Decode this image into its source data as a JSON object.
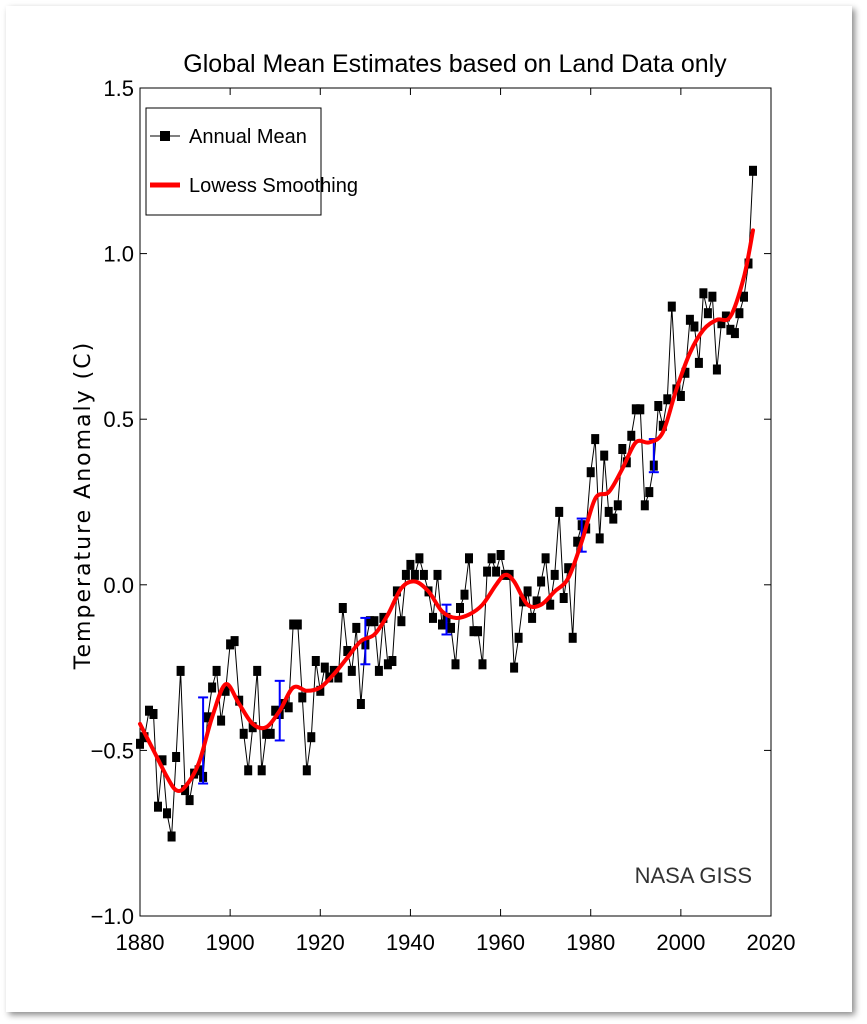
{
  "chart_data": {
    "type": "line",
    "title": "Global Mean Estimates based on Land Data only",
    "xlabel": "",
    "ylabel": "Temperature Anomaly (C)",
    "xlim": [
      1880,
      2020
    ],
    "ylim": [
      -1.0,
      1.5
    ],
    "xticks": [
      "1880",
      "1900",
      "1920",
      "1940",
      "1960",
      "1980",
      "2000",
      "2020"
    ],
    "yticks": [
      "−1.0",
      "−0.5",
      "0.0",
      "0.5",
      "1.0",
      "1.5"
    ],
    "grid": false,
    "legend_position": "top-left",
    "annotation": "NASA GISS",
    "series": [
      {
        "name": "Annual Mean",
        "color": "#000000",
        "marker": "square",
        "x": [
          1880,
          1881,
          1882,
          1883,
          1884,
          1885,
          1886,
          1887,
          1888,
          1889,
          1890,
          1891,
          1892,
          1893,
          1894,
          1895,
          1896,
          1897,
          1898,
          1899,
          1900,
          1901,
          1902,
          1903,
          1904,
          1905,
          1906,
          1907,
          1908,
          1909,
          1910,
          1911,
          1912,
          1913,
          1914,
          1915,
          1916,
          1917,
          1918,
          1919,
          1920,
          1921,
          1922,
          1923,
          1924,
          1925,
          1926,
          1927,
          1928,
          1929,
          1930,
          1931,
          1932,
          1933,
          1934,
          1935,
          1936,
          1937,
          1938,
          1939,
          1940,
          1941,
          1942,
          1943,
          1944,
          1945,
          1946,
          1947,
          1948,
          1949,
          1950,
          1951,
          1952,
          1953,
          1954,
          1955,
          1956,
          1957,
          1958,
          1959,
          1960,
          1961,
          1962,
          1963,
          1964,
          1965,
          1966,
          1967,
          1968,
          1969,
          1970,
          1971,
          1972,
          1973,
          1974,
          1975,
          1976,
          1977,
          1978,
          1979,
          1980,
          1981,
          1982,
          1983,
          1984,
          1985,
          1986,
          1987,
          1988,
          1989,
          1990,
          1991,
          1992,
          1993,
          1994,
          1995,
          1996,
          1997,
          1998,
          1999,
          2000,
          2001,
          2002,
          2003,
          2004,
          2005,
          2006,
          2007,
          2008,
          2009,
          2010,
          2011,
          2012,
          2013,
          2014,
          2015,
          2016
        ],
        "y": [
          -0.48,
          -0.46,
          -0.38,
          -0.39,
          -0.67,
          -0.53,
          -0.69,
          -0.76,
          -0.52,
          -0.26,
          -0.62,
          -0.65,
          -0.57,
          -0.56,
          -0.58,
          -0.4,
          -0.31,
          -0.26,
          -0.41,
          -0.32,
          -0.18,
          -0.17,
          -0.35,
          -0.45,
          -0.56,
          -0.43,
          -0.26,
          -0.56,
          -0.45,
          -0.45,
          -0.38,
          -0.39,
          -0.36,
          -0.37,
          -0.12,
          -0.12,
          -0.34,
          -0.56,
          -0.46,
          -0.23,
          -0.32,
          -0.25,
          -0.28,
          -0.26,
          -0.28,
          -0.07,
          -0.2,
          -0.26,
          -0.13,
          -0.36,
          -0.18,
          -0.11,
          -0.11,
          -0.26,
          -0.1,
          -0.24,
          -0.23,
          -0.02,
          -0.11,
          0.03,
          0.06,
          0.03,
          0.08,
          0.03,
          -0.02,
          -0.1,
          0.03,
          -0.12,
          -0.1,
          -0.13,
          -0.24,
          -0.07,
          -0.03,
          0.08,
          -0.14,
          -0.14,
          -0.24,
          0.04,
          0.08,
          0.04,
          0.09,
          0.03,
          0.03,
          -0.25,
          -0.16,
          -0.05,
          -0.02,
          -0.1,
          -0.05,
          0.01,
          0.08,
          -0.06,
          0.03,
          0.22,
          -0.04,
          0.05,
          -0.16,
          0.13,
          0.18,
          0.17,
          0.34,
          0.44,
          0.14,
          0.39,
          0.22,
          0.2,
          0.24,
          0.41,
          0.37,
          0.45,
          0.53,
          0.53,
          0.24,
          0.28,
          0.36,
          0.54,
          0.48,
          0.56,
          0.84,
          0.59,
          0.57,
          0.64,
          0.8,
          0.78,
          0.67,
          0.88,
          0.82,
          0.87,
          0.65,
          0.79,
          0.81,
          0.77,
          0.76,
          0.82,
          0.87,
          0.97,
          1.25
        ]
      },
      {
        "name": "Lowess Smoothing",
        "color": "#ff0000",
        "x": [
          1880,
          1883,
          1886,
          1888,
          1890,
          1893,
          1896,
          1899,
          1902,
          1905,
          1908,
          1911,
          1914,
          1917,
          1920,
          1923,
          1926,
          1929,
          1932,
          1935,
          1938,
          1941,
          1944,
          1947,
          1950,
          1953,
          1956,
          1959,
          1961,
          1963,
          1966,
          1969,
          1972,
          1975,
          1978,
          1981,
          1984,
          1987,
          1990,
          1993,
          1996,
          1999,
          2002,
          2005,
          2008,
          2011,
          2014,
          2016
        ],
        "y": [
          -0.42,
          -0.5,
          -0.58,
          -0.62,
          -0.61,
          -0.54,
          -0.4,
          -0.3,
          -0.36,
          -0.42,
          -0.43,
          -0.38,
          -0.31,
          -0.32,
          -0.31,
          -0.27,
          -0.22,
          -0.17,
          -0.15,
          -0.09,
          -0.01,
          0.01,
          -0.02,
          -0.08,
          -0.1,
          -0.09,
          -0.06,
          0.0,
          0.03,
          0.01,
          -0.06,
          -0.06,
          -0.02,
          0.02,
          0.13,
          0.26,
          0.28,
          0.35,
          0.43,
          0.43,
          0.46,
          0.59,
          0.7,
          0.77,
          0.8,
          0.81,
          0.93,
          1.07
        ]
      }
    ],
    "error_bars": {
      "color": "#0000ff",
      "points": [
        {
          "x": 1894,
          "low": -0.6,
          "high": -0.34
        },
        {
          "x": 1911,
          "low": -0.47,
          "high": -0.29
        },
        {
          "x": 1930,
          "low": -0.24,
          "high": -0.1
        },
        {
          "x": 1948,
          "low": -0.15,
          "high": -0.06
        },
        {
          "x": 1978,
          "low": 0.1,
          "high": 0.2
        },
        {
          "x": 1994,
          "low": 0.34,
          "high": 0.44
        }
      ]
    }
  }
}
